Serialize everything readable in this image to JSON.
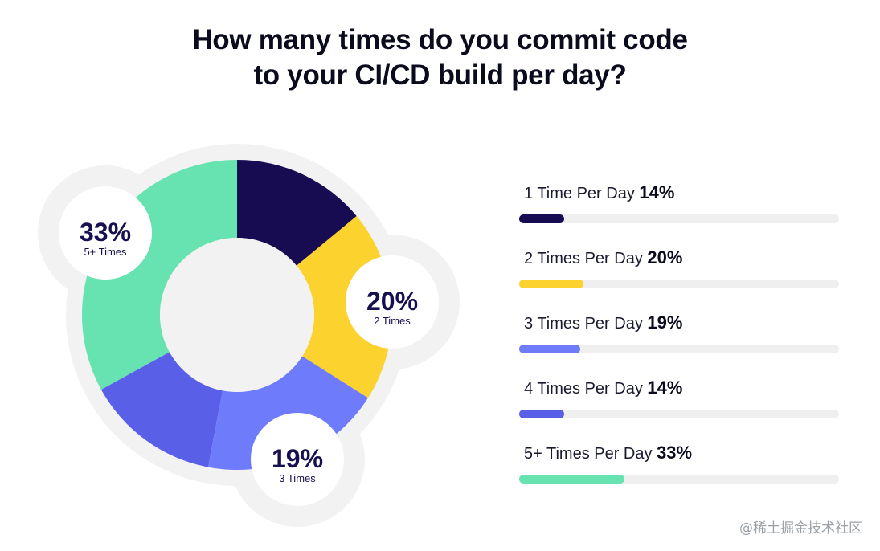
{
  "title_line1": "How many times do you commit code",
  "title_line2": "to your CI/CD build per day?",
  "watermark": "@稀土掘金技术社区",
  "colors": {
    "1_time": "#170c52",
    "2_times": "#fcd22e",
    "3_times": "#6e7bfb",
    "4_times": "#5a5fe8",
    "5_plus": "#67e3b1",
    "halo": "#f2f2f2",
    "track": "#efefef"
  },
  "chart_data": {
    "type": "pie",
    "categories": [
      "1 Time Per Day",
      "2 Times Per Day",
      "3 Times Per Day",
      "4 Times Per Day",
      "5+ Times Per Day"
    ],
    "values": [
      14,
      20,
      19,
      14,
      33
    ],
    "unit": "%",
    "value_labels": [
      "14%",
      "20%",
      "19%",
      "14%",
      "33%"
    ],
    "callouts": [
      {
        "pct": "33%",
        "label": "5+ Times"
      },
      {
        "pct": "20%",
        "label": "2 Times"
      },
      {
        "pct": "19%",
        "label": "3 Times"
      }
    ],
    "legend_placement": "right"
  }
}
